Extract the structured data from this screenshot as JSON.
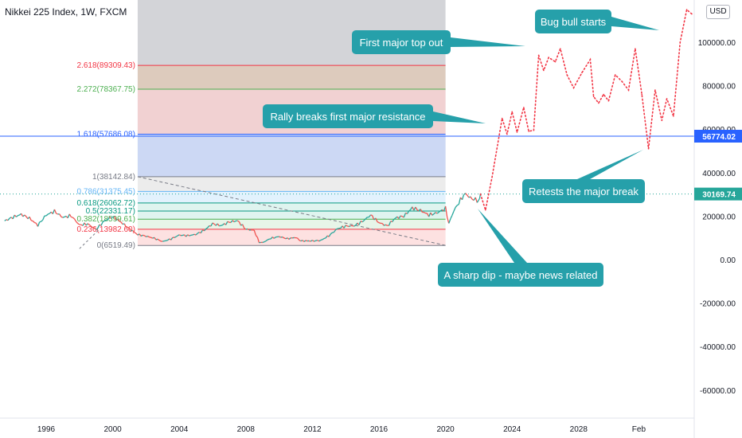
{
  "header": {
    "title": "Nikkei 225 Index, 1W, FXCM",
    "currency": "USD"
  },
  "chart_data": {
    "type": "line",
    "title": "Nikkei 225 Index, 1W, FXCM",
    "x_ticks": [
      "1996",
      "2000",
      "2004",
      "2008",
      "2012",
      "2016",
      "2020",
      "2024",
      "2028",
      "Feb"
    ],
    "y_ticks": [
      "100000.00",
      "80000.00",
      "60000.00",
      "40000.00",
      "20000.00",
      "0.00",
      "-20000.00",
      "-40000.00",
      "-60000.00"
    ],
    "ylim": [
      -66000,
      118000
    ],
    "price_labels": {
      "resistance": "56774.02",
      "last": "30169.74"
    },
    "resistance_level": 56774.02,
    "last_price": 30169.74,
    "fib_levels": [
      {
        "label": "2.618(89309.43)",
        "value": 89309.43,
        "color": "#f23645"
      },
      {
        "label": "2.272(78367.75)",
        "value": 78367.75,
        "color": "#4caf50"
      },
      {
        "label": "1.618(57686.08)",
        "value": 57686.08,
        "color": "#2962ff"
      },
      {
        "label": "1(38142.84)",
        "value": 38142.84,
        "color": "#787b86"
      },
      {
        "label": "0.786(31375.45)",
        "value": 31375.45,
        "color": "#64b5f6"
      },
      {
        "label": "0.618(26062.72)",
        "value": 26062.72,
        "color": "#089981"
      },
      {
        "label": "0.5(22331.17)",
        "value": 22331.17,
        "color": "#089981"
      },
      {
        "label": "0.382(18599.61)",
        "value": 18599.61,
        "color": "#4caf50"
      },
      {
        "label": "0.236(13982.60)",
        "value": 13982.6,
        "color": "#f23645"
      },
      {
        "label": "0(6519.49)",
        "value": 6519.49,
        "color": "#787b86"
      }
    ],
    "series": [
      {
        "values": [
          [
            1993.5,
            17800
          ],
          [
            1994,
            19500
          ],
          [
            1994.5,
            20800
          ],
          [
            1995,
            19000
          ],
          [
            1995.5,
            15800
          ],
          [
            1996,
            20500
          ],
          [
            1996.5,
            22200
          ],
          [
            1997,
            19400
          ],
          [
            1997.5,
            20200
          ],
          [
            1998,
            15900
          ],
          [
            1998.5,
            16400
          ],
          [
            1999,
            13900
          ],
          [
            1999.5,
            17800
          ],
          [
            2000,
            19800
          ],
          [
            2000.5,
            17200
          ],
          [
            2001,
            14200
          ],
          [
            2001.5,
            11500
          ],
          [
            2002,
            10800
          ],
          [
            2002.5,
            9800
          ],
          [
            2003,
            8300
          ],
          [
            2003.5,
            9500
          ],
          [
            2004,
            11300
          ],
          [
            2004.5,
            11000
          ],
          [
            2005,
            11600
          ],
          [
            2005.5,
            13500
          ],
          [
            2006,
            16500
          ],
          [
            2006.5,
            15600
          ],
          [
            2007,
            17300
          ],
          [
            2007.5,
            17900
          ],
          [
            2008,
            14000
          ],
          [
            2008.5,
            13400
          ],
          [
            2008.8,
            8000
          ],
          [
            2009,
            7800
          ],
          [
            2009.5,
            9800
          ],
          [
            2010,
            10600
          ],
          [
            2010.5,
            9600
          ],
          [
            2011,
            10200
          ],
          [
            2011.3,
            8600
          ],
          [
            2012,
            8600
          ],
          [
            2012.5,
            8800
          ],
          [
            2013,
            11000
          ],
          [
            2013.5,
            14200
          ],
          [
            2014,
            15400
          ],
          [
            2014.5,
            15500
          ],
          [
            2015,
            17500
          ],
          [
            2015.5,
            20500
          ],
          [
            2016,
            17000
          ],
          [
            2016.5,
            15500
          ],
          [
            2017,
            19200
          ],
          [
            2017.5,
            20000
          ],
          [
            2018,
            23800
          ],
          [
            2018.5,
            22600
          ],
          [
            2019,
            20500
          ],
          [
            2019.5,
            21500
          ],
          [
            2020,
            23500
          ],
          [
            2020.2,
            16600
          ],
          [
            2020.5,
            22500
          ],
          [
            2021,
            28600
          ],
          [
            2021.2,
            30400
          ],
          [
            2021.5,
            28300
          ],
          [
            2022,
            27000
          ],
          [
            2022.1,
            30169.74
          ]
        ]
      },
      {
        "values": [
          [
            2022.1,
            30169.74
          ],
          [
            2022.4,
            22800
          ],
          [
            2022.8,
            38000
          ],
          [
            2023.4,
            65000
          ],
          [
            2023.7,
            57700
          ],
          [
            2024.0,
            68000
          ],
          [
            2024.3,
            58600
          ],
          [
            2024.7,
            70000
          ],
          [
            2025.0,
            59000
          ],
          [
            2025.3,
            59500
          ],
          [
            2025.6,
            94000
          ],
          [
            2025.9,
            87000
          ],
          [
            2026.2,
            93000
          ],
          [
            2026.6,
            91000
          ],
          [
            2026.9,
            97000
          ],
          [
            2027.3,
            85000
          ],
          [
            2027.7,
            79000
          ],
          [
            2028.2,
            86000
          ],
          [
            2028.7,
            92000
          ],
          [
            2028.9,
            75000
          ],
          [
            2029.2,
            72000
          ],
          [
            2029.5,
            76000
          ],
          [
            2029.8,
            73000
          ],
          [
            2030.2,
            85000
          ],
          [
            2030.6,
            82000
          ],
          [
            2031.0,
            78000
          ],
          [
            2031.4,
            97000
          ],
          [
            2031.8,
            76000
          ],
          [
            2032.2,
            51000
          ],
          [
            2032.6,
            78000
          ],
          [
            2033.0,
            64000
          ],
          [
            2033.3,
            74000
          ],
          [
            2033.7,
            66000
          ],
          [
            2034.1,
            100000
          ],
          [
            2034.5,
            115000
          ],
          [
            2034.8,
            113000
          ]
        ]
      }
    ],
    "annotations": [
      "Bug bull starts",
      "First major top out",
      "Rally breaks first major resistance",
      "Retests the major break",
      "A sharp dip - maybe news related"
    ]
  }
}
